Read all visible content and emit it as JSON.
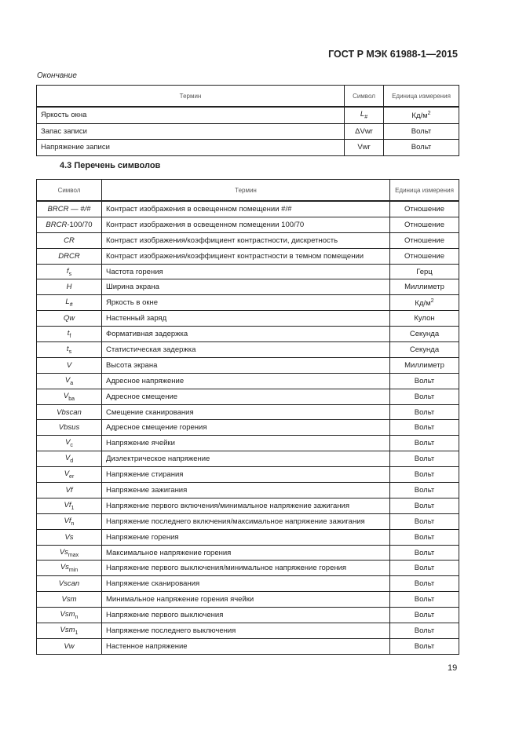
{
  "header": {
    "doc_title": "ГОСТ Р МЭК 61988-1—2015"
  },
  "continuation_label": "Окончание",
  "table1": {
    "columns": [
      "Термин",
      "Символ",
      "Единица измерения"
    ],
    "rows": [
      {
        "term": "Яркость окна",
        "sym": "L",
        "sub": "#",
        "rest": "",
        "unit": "Кд/м",
        "unit_sup": "2"
      },
      {
        "term": "Запас записи",
        "sym": "",
        "sub": "",
        "rest": "ΔVwr",
        "unit": "Вольт",
        "unit_sup": ""
      },
      {
        "term": "Напряжение записи",
        "sym": "",
        "sub": "",
        "rest": "Vwr",
        "unit": "Вольт",
        "unit_sup": ""
      }
    ]
  },
  "section_title": "4.3 Перечень символов",
  "table2": {
    "columns": [
      "Символ",
      "Термин",
      "Единица измерения"
    ],
    "rows": [
      {
        "sym": "BRCR — #/#",
        "sub": "",
        "rest": "",
        "term": "Контраст изображения в освещенном помещении #/#",
        "unit": "Отношение",
        "unit_sup": ""
      },
      {
        "sym": "BRCR",
        "sub": "",
        "rest": "-100/70",
        "term": "Контраст изображения в освещенном помещении 100/70",
        "unit": "Отношение",
        "unit_sup": ""
      },
      {
        "sym": "CR",
        "sub": "",
        "rest": "",
        "term": "Контраст изображения/коэффициент контрастности, дискретность",
        "unit": "Отношение",
        "unit_sup": ""
      },
      {
        "sym": "DRCR",
        "sub": "",
        "rest": "",
        "term": "Контраст изображения/коэффициент контрастности в темном помещении",
        "unit": "Отношение",
        "unit_sup": ""
      },
      {
        "sym": "f",
        "sub": "s",
        "rest": "",
        "term": "Частота горения",
        "unit": "Герц",
        "unit_sup": ""
      },
      {
        "sym": "H",
        "sub": "",
        "rest": "",
        "term": "Ширина экрана",
        "unit": "Миллиметр",
        "unit_sup": ""
      },
      {
        "sym": "L",
        "sub": "#",
        "rest": "",
        "term": "Яркость в окне",
        "unit": "Кд/м",
        "unit_sup": "2"
      },
      {
        "sym": "Qw",
        "sub": "",
        "rest": "",
        "term": "Настенный заряд",
        "unit": "Кулон",
        "unit_sup": ""
      },
      {
        "sym": "t",
        "sub": "f",
        "rest": "",
        "term": "Формативная задержка",
        "unit": "Секунда",
        "unit_sup": ""
      },
      {
        "sym": "t",
        "sub": "s",
        "rest": "",
        "term": "Статистическая задержка",
        "unit": "Секунда",
        "unit_sup": ""
      },
      {
        "sym": "V",
        "sub": "",
        "rest": "",
        "term": "Высота экрана",
        "unit": "Миллиметр",
        "unit_sup": ""
      },
      {
        "sym": "V",
        "sub": "a",
        "rest": "",
        "term": "Адресное напряжение",
        "unit": "Вольт",
        "unit_sup": ""
      },
      {
        "sym": "V",
        "sub": "ba",
        "rest": "",
        "term": "Адресное смещение",
        "unit": "Вольт",
        "unit_sup": ""
      },
      {
        "sym": "Vbscan",
        "sub": "",
        "rest": "",
        "term": "Смещение сканирования",
        "unit": "Вольт",
        "unit_sup": ""
      },
      {
        "sym": "Vbsus",
        "sub": "",
        "rest": "",
        "term": "Адресное смещение горения",
        "unit": "Вольт",
        "unit_sup": ""
      },
      {
        "sym": "V",
        "sub": "c",
        "rest": "",
        "term": "Напряжение ячейки",
        "unit": "Вольт",
        "unit_sup": ""
      },
      {
        "sym": "V",
        "sub": "d",
        "rest": "",
        "term": "Диэлектрическое напряжение",
        "unit": "Вольт",
        "unit_sup": ""
      },
      {
        "sym": "V",
        "sub": "er",
        "rest": "",
        "term": "Напряжение стирания",
        "unit": "Вольт",
        "unit_sup": ""
      },
      {
        "sym": "Vf",
        "sub": "",
        "rest": "",
        "term": "Напряжение зажигания",
        "unit": "Вольт",
        "unit_sup": ""
      },
      {
        "sym": "Vf",
        "sub": "1",
        "rest": "",
        "term": "Напряжение первого включения/минимальное напряжение зажигания",
        "unit": "Вольт",
        "unit_sup": ""
      },
      {
        "sym": "Vf",
        "sub": "n",
        "rest": "",
        "term": "Напряжение последнего включения/максимальное напряжение зажигания",
        "unit": "Вольт",
        "unit_sup": ""
      },
      {
        "sym": "Vs",
        "sub": "",
        "rest": "",
        "term": "Напряжение горения",
        "unit": "Вольт",
        "unit_sup": ""
      },
      {
        "sym": "Vs",
        "sub": "max",
        "rest": "",
        "term": "Максимальное напряжение горения",
        "unit": "Вольт",
        "unit_sup": ""
      },
      {
        "sym": "Vs",
        "sub": "min",
        "rest": "",
        "term": "Напряжение первого выключения/минимальное напряжение горения",
        "unit": "Вольт",
        "unit_sup": ""
      },
      {
        "sym": "Vscan",
        "sub": "",
        "rest": "",
        "term": "Напряжение сканирования",
        "unit": "Вольт",
        "unit_sup": ""
      },
      {
        "sym": "Vsm",
        "sub": "",
        "rest": "",
        "term": "Минимальное напряжение горения ячейки",
        "unit": "Вольт",
        "unit_sup": ""
      },
      {
        "sym": "Vsm",
        "sub": "n",
        "rest": "",
        "term": "Напряжение первого выключения",
        "unit": "Вольт",
        "unit_sup": ""
      },
      {
        "sym": "Vsm",
        "sub": "1",
        "rest": "",
        "term": "Напряжение последнего выключения",
        "unit": "Вольт",
        "unit_sup": ""
      },
      {
        "sym": "Vw",
        "sub": "",
        "rest": "",
        "term": "Настенное напряжение",
        "unit": "Вольт",
        "unit_sup": ""
      }
    ]
  },
  "page_number": "19"
}
